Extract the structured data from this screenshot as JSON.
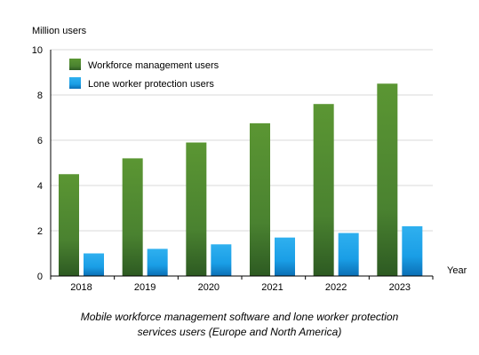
{
  "chart_data": {
    "type": "bar",
    "title": "",
    "ylabel": "Million users",
    "xlabel": "Year",
    "ylim": [
      0,
      10
    ],
    "yticks": [
      0,
      2,
      4,
      6,
      8,
      10
    ],
    "grid": true,
    "legend_position": "top-left",
    "categories": [
      "2018",
      "2019",
      "2020",
      "2021",
      "2022",
      "2023"
    ],
    "series": [
      {
        "name": "Workforce management users",
        "values": [
          4.5,
          5.2,
          5.9,
          6.75,
          7.6,
          8.5
        ],
        "color": "#4f8a2c"
      },
      {
        "name": "Lone worker protection users",
        "values": [
          1.0,
          1.2,
          1.4,
          1.7,
          1.9,
          2.2
        ],
        "color": "#1ea6ea"
      }
    ]
  },
  "caption": {
    "line1": "Mobile workforce management software and lone worker protection",
    "line2": "services users (Europe and North America)"
  }
}
